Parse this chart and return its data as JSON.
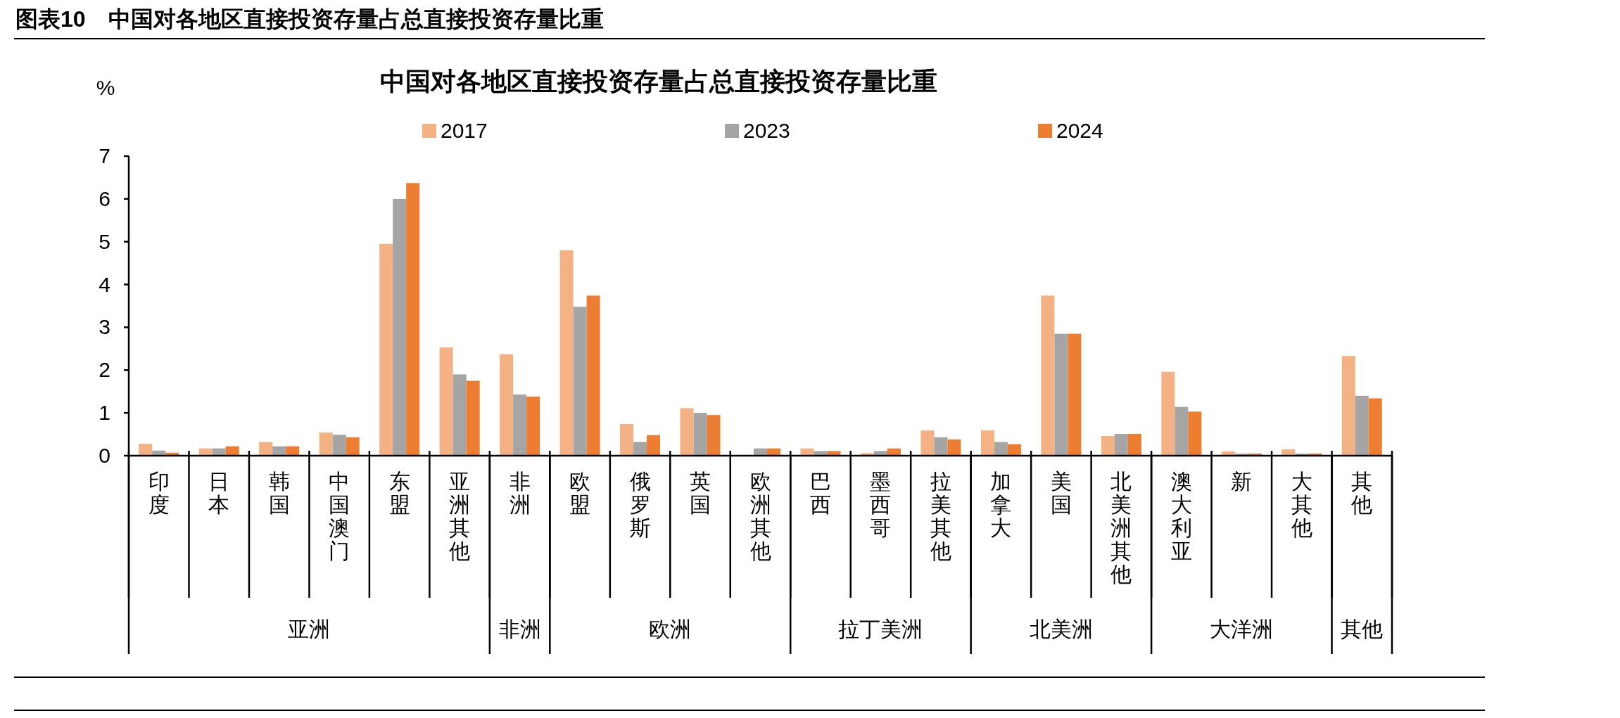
{
  "chart_data": {
    "type": "bar",
    "title": "中国对各地区直接投资存量占总直接投资存量比重",
    "ylabel": "%",
    "categories": [
      "印度",
      "日本",
      "韩国",
      "中国澳门",
      "东盟",
      "亚洲其他",
      "非洲",
      "欧盟",
      "俄罗斯",
      "英国",
      "欧洲其他",
      "巴西",
      "墨西哥",
      "拉美其他",
      "加拿大",
      "美国",
      "北美洲其他",
      "澳大利亚",
      "新",
      "大其他",
      "其他"
    ],
    "series": [
      {
        "name": "2017",
        "color": "#f4b183",
        "values": [
          0.28,
          0.17,
          0.32,
          0.54,
          4.95,
          2.53,
          2.37,
          4.8,
          0.74,
          1.11,
          0.01,
          0.17,
          0.06,
          0.59,
          0.59,
          3.74,
          0.46,
          1.96,
          0.1,
          0.15,
          2.33
        ]
      },
      {
        "name": "2023",
        "color": "#a5a5a5",
        "values": [
          0.12,
          0.17,
          0.22,
          0.49,
          6.0,
          1.9,
          1.43,
          3.48,
          0.32,
          1.0,
          0.17,
          0.11,
          0.11,
          0.43,
          0.32,
          2.85,
          0.51,
          1.14,
          0.05,
          0.05,
          1.4
        ]
      },
      {
        "name": "2024",
        "color": "#ed7d31",
        "values": [
          0.07,
          0.22,
          0.22,
          0.43,
          6.37,
          1.75,
          1.38,
          3.74,
          0.48,
          0.95,
          0.17,
          0.11,
          0.17,
          0.38,
          0.27,
          2.85,
          0.51,
          1.03,
          0.05,
          0.05,
          1.34
        ]
      }
    ],
    "ylim": [
      0,
      7
    ],
    "yticks": [
      0,
      1,
      2,
      3,
      4,
      5,
      6,
      7
    ],
    "legend": "top",
    "grid": false,
    "annotations": [
      "图表10　中国对各地区直接投资存量占总直接投资存量比重",
      "亚洲",
      "非洲",
      "欧洲",
      "拉丁美洲",
      "北美洲",
      "大洋洲",
      "其他"
    ]
  }
}
